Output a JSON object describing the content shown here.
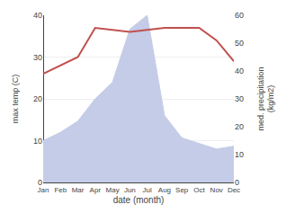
{
  "chart_data": {
    "type": "line",
    "categories": [
      "Jan",
      "Feb",
      "Mar",
      "Apr",
      "May",
      "Jun",
      "Jul",
      "Aug",
      "Sep",
      "Oct",
      "Nov",
      "Dec"
    ],
    "xlabel": "date (month)",
    "ylabel": "max temp (C)",
    "y2label": "med. precipitation\n(kg/m2)",
    "ylim": [
      0,
      40
    ],
    "yticks": [
      0,
      10,
      20,
      30,
      40
    ],
    "y2lim": [
      0,
      60
    ],
    "y2ticks": [
      0,
      10,
      20,
      30,
      40,
      50,
      60
    ],
    "grid": true,
    "series": [
      {
        "type": "area",
        "axis": "y2",
        "color": "#c5cce8",
        "values": [
          15,
          18,
          22,
          30,
          36,
          55,
          60,
          24,
          16,
          14,
          12,
          13
        ]
      },
      {
        "type": "line",
        "color": "#c0504d",
        "values": [
          26,
          28,
          30,
          37,
          36.5,
          36,
          36.5,
          37,
          37,
          37,
          34,
          29
        ]
      }
    ]
  }
}
